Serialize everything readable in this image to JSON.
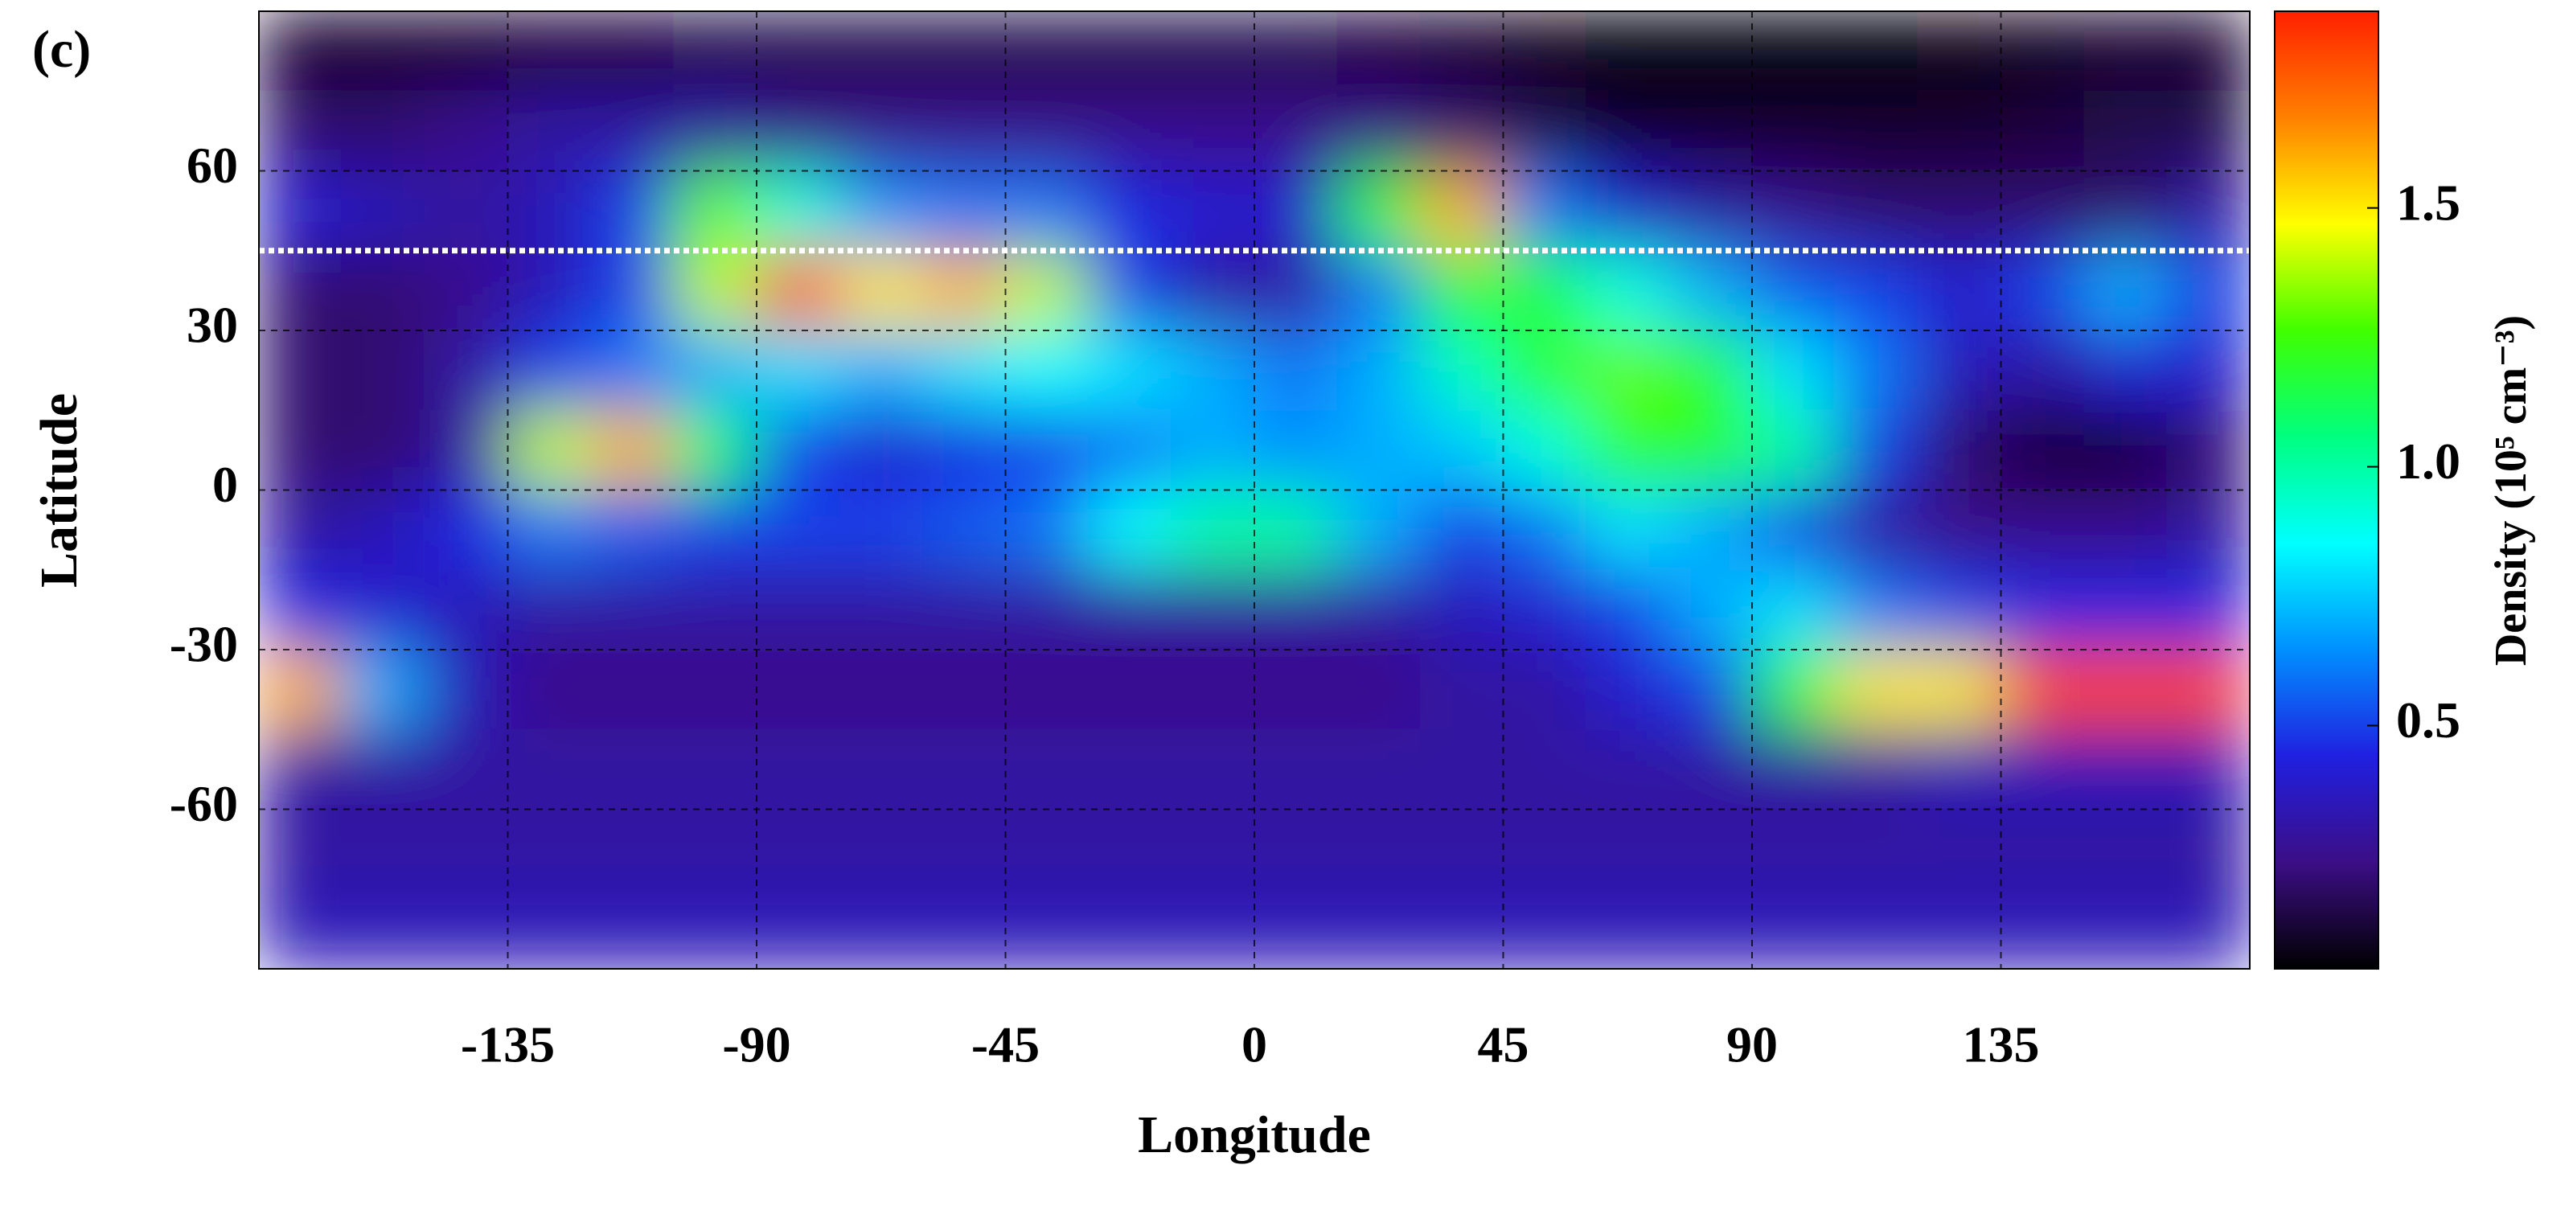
{
  "chart_data": {
    "type": "heatmap",
    "panel_label": "(c)",
    "x_label": "Longitude",
    "y_label": "Latitude",
    "colorbar_label": "Density (10⁵ cm⁻³)",
    "xlim": [
      -180,
      180
    ],
    "ylim": [
      -90,
      90
    ],
    "xticks": [
      -135,
      -90,
      -45,
      0,
      45,
      90,
      135
    ],
    "yticks": [
      -60,
      -30,
      0,
      30,
      60
    ],
    "grid": true,
    "clim": [
      0.03,
      1.88
    ],
    "cticks": [
      0.5,
      {
        "value": 1,
        "label": "1.0"
      },
      1.5
    ],
    "colormap": [
      "#000000",
      "#3c0e86",
      "#2020e0",
      "#0090ff",
      "#00ffff",
      "#00ff80",
      "#40ff00",
      "#ffff00",
      "#ff8000",
      "#ff2000"
    ],
    "hline": 45,
    "hline_color": "#ffffff",
    "x": [
      -172.5,
      -157.5,
      -142.5,
      -127.5,
      -112.5,
      -97.5,
      -82.5,
      -67.5,
      -52.5,
      -37.5,
      -22.5,
      -7.5,
      7.5,
      22.5,
      37.5,
      52.5,
      67.5,
      82.5,
      97.5,
      112.5,
      127.5,
      142.5,
      157.5,
      172.5
    ],
    "y": [
      82.5,
      67.5,
      52.5,
      37.5,
      22.5,
      7.5,
      -7.5,
      -22.5,
      -37.5,
      -52.5,
      -67.5,
      -82.5
    ],
    "z": [
      [
        0.1,
        0.1,
        0.1,
        0.12,
        0.12,
        0.15,
        0.15,
        0.15,
        0.15,
        0.15,
        0.15,
        0.15,
        0.15,
        0.12,
        0.1,
        0.06,
        0.05,
        0.05,
        0.05,
        0.05,
        0.06,
        0.08,
        0.1,
        0.1
      ],
      [
        0.2,
        0.2,
        0.25,
        0.3,
        0.3,
        0.3,
        0.25,
        0.25,
        0.25,
        0.25,
        0.25,
        0.25,
        0.25,
        0.25,
        0.2,
        0.15,
        0.1,
        0.1,
        0.1,
        0.1,
        0.1,
        0.12,
        0.15,
        0.15
      ],
      [
        0.4,
        0.35,
        0.3,
        0.35,
        0.5,
        1.3,
        0.9,
        0.65,
        0.6,
        0.6,
        0.45,
        0.4,
        0.4,
        1.2,
        1.6,
        0.6,
        0.4,
        0.3,
        0.25,
        0.2,
        0.2,
        0.2,
        0.2,
        0.3
      ],
      [
        0.2,
        0.2,
        0.25,
        0.35,
        0.5,
        1.4,
        1.8,
        1.5,
        1.6,
        1.4,
        0.5,
        0.3,
        0.3,
        0.6,
        1.2,
        1.15,
        0.9,
        0.7,
        0.55,
        0.5,
        0.4,
        0.5,
        0.7,
        0.5
      ],
      [
        0.2,
        0.2,
        0.3,
        0.5,
        0.6,
        0.7,
        0.8,
        0.7,
        0.8,
        0.85,
        0.8,
        0.7,
        0.6,
        0.7,
        0.95,
        1.2,
        1.3,
        1.2,
        0.8,
        0.6,
        0.35,
        0.3,
        0.4,
        0.4
      ],
      [
        0.2,
        0.2,
        0.3,
        1.4,
        1.6,
        1.1,
        0.5,
        0.4,
        0.45,
        0.5,
        0.6,
        0.7,
        0.65,
        0.7,
        0.75,
        0.9,
        1.2,
        1.2,
        1.0,
        0.5,
        0.2,
        0.1,
        0.1,
        0.2
      ],
      [
        0.3,
        0.35,
        0.45,
        0.6,
        0.55,
        0.5,
        0.5,
        0.5,
        0.55,
        0.6,
        0.85,
        1.0,
        1.0,
        0.7,
        0.5,
        0.6,
        0.8,
        0.7,
        0.5,
        0.3,
        0.25,
        0.25,
        0.25,
        0.3
      ],
      [
        0.45,
        0.4,
        0.35,
        0.3,
        0.3,
        0.3,
        0.3,
        0.3,
        0.3,
        0.3,
        0.3,
        0.3,
        0.3,
        0.3,
        0.35,
        0.4,
        0.5,
        0.7,
        0.8,
        0.6,
        0.5,
        0.45,
        0.45,
        0.45
      ],
      [
        1.6,
        0.7,
        0.35,
        0.25,
        0.25,
        0.25,
        0.25,
        0.25,
        0.25,
        0.25,
        0.25,
        0.25,
        0.25,
        0.25,
        0.3,
        0.3,
        0.4,
        0.5,
        1.2,
        1.5,
        1.5,
        1.8,
        1.8,
        1.8
      ],
      [
        0.3,
        0.3,
        0.3,
        0.3,
        0.3,
        0.3,
        0.3,
        0.3,
        0.3,
        0.3,
        0.3,
        0.3,
        0.3,
        0.3,
        0.3,
        0.3,
        0.3,
        0.3,
        0.3,
        0.3,
        0.35,
        0.35,
        0.35,
        0.35
      ],
      [
        0.3,
        0.3,
        0.3,
        0.3,
        0.3,
        0.3,
        0.3,
        0.3,
        0.3,
        0.3,
        0.3,
        0.3,
        0.3,
        0.3,
        0.3,
        0.3,
        0.3,
        0.3,
        0.3,
        0.3,
        0.3,
        0.3,
        0.3,
        0.3
      ],
      [
        0.35,
        0.35,
        0.35,
        0.35,
        0.35,
        0.35,
        0.35,
        0.35,
        0.35,
        0.35,
        0.35,
        0.35,
        0.35,
        0.35,
        0.35,
        0.35,
        0.35,
        0.35,
        0.35,
        0.35,
        0.35,
        0.35,
        0.35,
        0.35
      ]
    ]
  }
}
